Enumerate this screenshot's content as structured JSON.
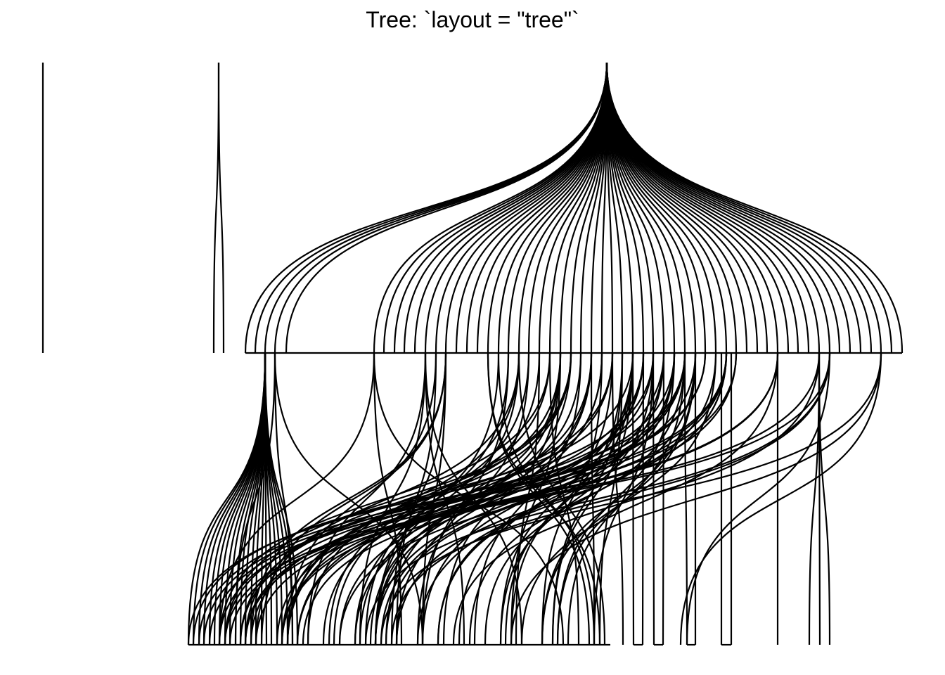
{
  "title": "Tree: `layout = \"tree\"`",
  "diagram": {
    "type": "tree graph (hierarchical layout)",
    "edge_color": "#000000",
    "background": "#ffffff",
    "levels": 3,
    "components": [
      {
        "description": "isolated edge",
        "root_level": 0,
        "children_level_1": 1
      },
      {
        "description": "root with two children",
        "root_level": 0,
        "children_level_1": 2
      },
      {
        "description": "main hub root",
        "root_level": 0,
        "children_level_1": 49,
        "grandchildren_level_2": "many"
      }
    ]
  }
}
